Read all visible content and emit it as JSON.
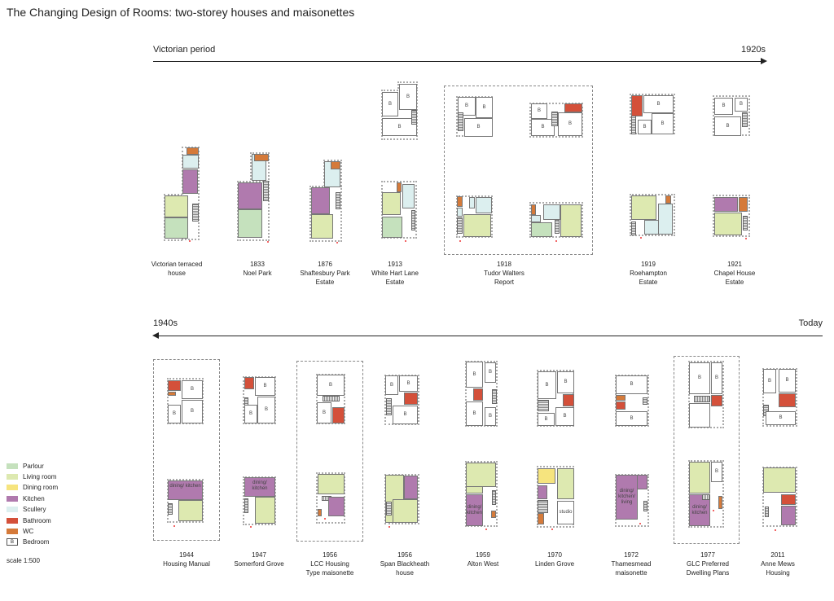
{
  "title": "The Changing Design of Rooms: two-storey houses and maisonettes",
  "timelines": [
    {
      "start": "Victorian period",
      "end": "1920s",
      "direction": "right"
    },
    {
      "start": "1940s",
      "end": "Today",
      "direction": "left"
    }
  ],
  "top_row": [
    {
      "year": "",
      "name": "Victorian terraced house"
    },
    {
      "year": "1833",
      "name": "Noel Park"
    },
    {
      "year": "1876",
      "name": "Shaftesbury Park Estate"
    },
    {
      "year": "1913",
      "name": "White Hart Lane Estate"
    },
    {
      "year": "1918",
      "name": "Tudor Walters Report"
    },
    {
      "year": "1919",
      "name": "Roehampton Estate"
    },
    {
      "year": "1921",
      "name": "Chapel House Estate"
    }
  ],
  "bottom_row": [
    {
      "year": "1944",
      "name": "Housing Manual"
    },
    {
      "year": "1947",
      "name": "Somerford Grove"
    },
    {
      "year": "1956",
      "name": "LCC Housing Type maisonette"
    },
    {
      "year": "1956",
      "name": "Span Blackheath house"
    },
    {
      "year": "1959",
      "name": "Alton West"
    },
    {
      "year": "1970",
      "name": "Linden Grove"
    },
    {
      "year": "1972",
      "name": "Thamesmead maisonette"
    },
    {
      "year": "1977",
      "name": "GLC Preferred Dwelling Plans"
    },
    {
      "year": "2011",
      "name": "Anne Mews Housing"
    }
  ],
  "room_labels": {
    "bedroom": "B",
    "dining_kitchen": "dining/ kitchen",
    "dining_kitchen_living": "dining/ kitchen/ living",
    "studio": "studio"
  },
  "legend": {
    "items": [
      {
        "label": "Parlour",
        "color": "#c5e1bd"
      },
      {
        "label": "Living room",
        "color": "#dde9b0"
      },
      {
        "label": "Dining room",
        "color": "#f6e47e"
      },
      {
        "label": "Kitchen",
        "color": "#b07aae"
      },
      {
        "label": "Scullery",
        "color": "#dcefef"
      },
      {
        "label": "Bathroom",
        "color": "#d4503a"
      },
      {
        "label": "WC",
        "color": "#d57a3a"
      },
      {
        "label": "Bedroom",
        "color": "#ffffff",
        "symbol": "B"
      }
    ],
    "scale": "scale 1:500"
  }
}
